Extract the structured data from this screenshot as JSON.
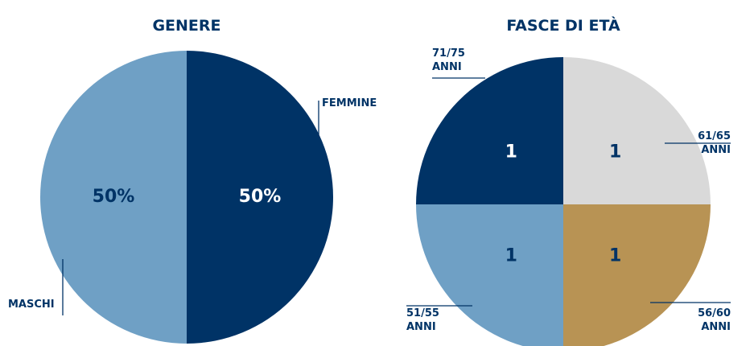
{
  "chart_data": [
    {
      "type": "pie",
      "title": "GENERE",
      "categories": [
        "FEMMINE",
        "MASCHI"
      ],
      "values": [
        50,
        50
      ],
      "value_labels": [
        "50%",
        "50%"
      ],
      "colors": [
        "#003366",
        "#6fa0c5"
      ]
    },
    {
      "type": "pie",
      "title": "FASCE DI ETÀ",
      "categories": [
        "61/65 ANNI",
        "56/60 ANNI",
        "51/55 ANNI",
        "71/75 ANNI"
      ],
      "values": [
        1,
        1,
        1,
        1
      ],
      "colors": [
        "#d9d9d9",
        "#b89354",
        "#6fa0c5",
        "#003366"
      ]
    }
  ]
}
